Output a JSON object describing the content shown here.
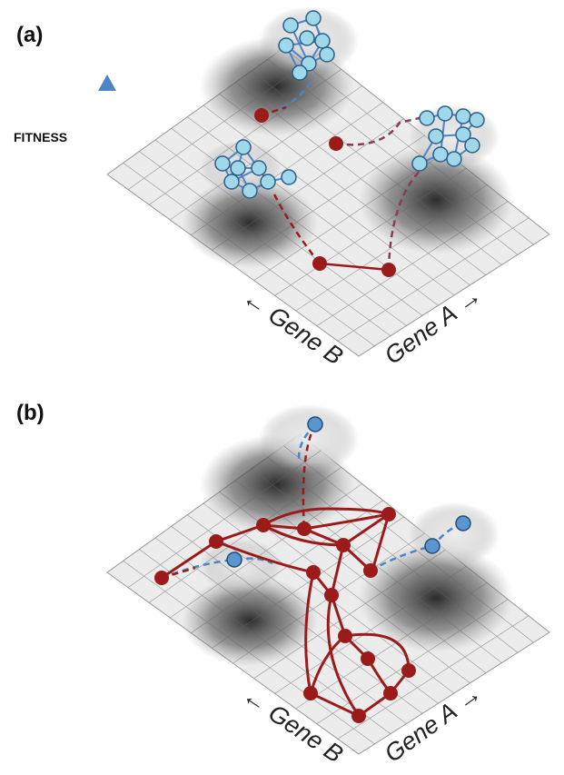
{
  "panels": [
    {
      "label": "(a)",
      "fitness_label": "FITNESS",
      "axis_labels": [
        "← Gene B",
        "Gene A →"
      ]
    },
    {
      "label": "(b)",
      "axis_labels": [
        "← Gene B",
        "Gene A →"
      ]
    }
  ]
}
